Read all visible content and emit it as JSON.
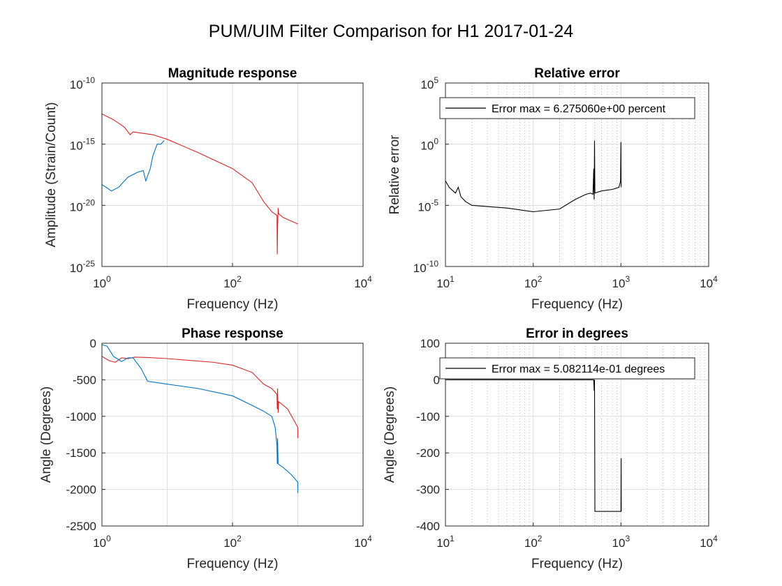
{
  "figure": {
    "title": "PUM/UIM Filter Comparison for H1 2017-01-24"
  },
  "colors": {
    "red": "#d62728",
    "blue": "#0072bd",
    "black": "#000000",
    "grid": "#dddddd"
  },
  "chart_data": [
    {
      "id": "magnitude",
      "type": "line",
      "title": "Magnitude response",
      "xlabel": "Frequency (Hz)",
      "ylabel": "Amplitude (Strain/Count)",
      "xscale": "log",
      "yscale": "log",
      "xlim": [
        1,
        10000
      ],
      "ylim": [
        1e-25,
        1e-10
      ],
      "xticks": [
        {
          "base": "10",
          "exp": "0"
        },
        {
          "base": "10",
          "exp": "2"
        },
        {
          "base": "10",
          "exp": "4"
        }
      ],
      "yticks": [
        {
          "base": "10",
          "exp": "-25"
        },
        {
          "base": "10",
          "exp": "-20"
        },
        {
          "base": "10",
          "exp": "-15"
        },
        {
          "base": "10",
          "exp": "-10"
        }
      ],
      "grid": "major",
      "series": [
        {
          "color": "#d62728",
          "points": [
            [
              1,
              3e-13
            ],
            [
              1.5,
              1e-13
            ],
            [
              2.2,
              2.5e-14
            ],
            [
              2.7,
              6e-15
            ],
            [
              3,
              1e-14
            ],
            [
              4,
              8e-15
            ],
            [
              6,
              6e-15
            ],
            [
              10,
              2.5e-15
            ],
            [
              30,
              2e-16
            ],
            [
              100,
              1e-17
            ],
            [
              200,
              7e-19
            ],
            [
              300,
              2e-20
            ],
            [
              400,
              3e-21
            ],
            [
              480,
              1.5e-21
            ],
            [
              485,
              1e-24
            ],
            [
              490,
              1e-22
            ],
            [
              500,
              6e-21
            ],
            [
              510,
              2e-21
            ],
            [
              600,
              1e-21
            ],
            [
              1000,
              3e-22
            ]
          ]
        },
        {
          "color": "#0072bd",
          "points": [
            [
              1,
              5e-19
            ],
            [
              1.4,
              1.5e-19
            ],
            [
              1.8,
              3e-19
            ],
            [
              2.5,
              2e-18
            ],
            [
              3.5,
              5e-18
            ],
            [
              4.3,
              7e-18
            ],
            [
              4.7,
              1e-18
            ],
            [
              5.5,
              1e-17
            ],
            [
              6,
              1e-16
            ],
            [
              7,
              1e-15
            ],
            [
              8,
              1e-15
            ],
            [
              9,
              2e-15
            ]
          ]
        }
      ]
    },
    {
      "id": "relerr",
      "type": "line",
      "title": "Relative error",
      "xlabel": "Frequency (Hz)",
      "ylabel": "Relative error",
      "xscale": "log",
      "yscale": "log",
      "xlim": [
        10,
        10000
      ],
      "ylim": [
        1e-10,
        100000.0
      ],
      "xticks": [
        {
          "base": "10",
          "exp": "1"
        },
        {
          "base": "10",
          "exp": "2"
        },
        {
          "base": "10",
          "exp": "3"
        },
        {
          "base": "10",
          "exp": "4"
        }
      ],
      "yticks": [
        {
          "base": "10",
          "exp": "-10"
        },
        {
          "base": "10",
          "exp": "-5"
        },
        {
          "base": "10",
          "exp": "0"
        },
        {
          "base": "10",
          "exp": "5"
        }
      ],
      "grid": "major+minor-dotted",
      "legend": {
        "entry": "Error max = 6.275060e+00 percent",
        "location": "top-left"
      },
      "series": [
        {
          "color": "#000000",
          "points": [
            [
              10,
              0.001
            ],
            [
              11,
              0.0003
            ],
            [
              13,
              0.0001
            ],
            [
              14,
              0.0003
            ],
            [
              15,
              5e-05
            ],
            [
              17,
              2e-05
            ],
            [
              20,
              1e-05
            ],
            [
              30,
              8e-06
            ],
            [
              50,
              6e-06
            ],
            [
              100,
              3e-06
            ],
            [
              200,
              5e-06
            ],
            [
              300,
              3e-05
            ],
            [
              400,
              8e-05
            ],
            [
              450,
              0.0001
            ],
            [
              480,
              8e-05
            ],
            [
              490,
              0.01
            ],
            [
              495,
              3e-05
            ],
            [
              500,
              2
            ],
            [
              505,
              0.0001
            ],
            [
              600,
              0.00015
            ],
            [
              800,
              0.0002
            ],
            [
              950,
              0.0003
            ],
            [
              990,
              0.001
            ],
            [
              1000,
              1.5
            ],
            [
              1005,
              0.0003
            ]
          ]
        }
      ]
    },
    {
      "id": "phase",
      "type": "line",
      "title": "Phase response",
      "xlabel": "Frequency (Hz)",
      "ylabel": "Angle (Degrees)",
      "xscale": "log",
      "yscale": "linear",
      "xlim": [
        1,
        10000
      ],
      "ylim": [
        -2500,
        0
      ],
      "xticks": [
        {
          "base": "10",
          "exp": "0"
        },
        {
          "base": "10",
          "exp": "2"
        },
        {
          "base": "10",
          "exp": "4"
        }
      ],
      "yticks": [
        {
          "label": "-2500",
          "value": -2500
        },
        {
          "label": "-2000",
          "value": -2000
        },
        {
          "label": "-1500",
          "value": -1500
        },
        {
          "label": "-1000",
          "value": -1000
        },
        {
          "label": "-500",
          "value": -500
        },
        {
          "label": "0",
          "value": 0
        }
      ],
      "grid": "major",
      "series": [
        {
          "color": "#d62728",
          "points": [
            [
              1,
              -180
            ],
            [
              1.3,
              -240
            ],
            [
              1.6,
              -260
            ],
            [
              2,
              -200
            ],
            [
              2.5,
              -210
            ],
            [
              3.2,
              -190
            ],
            [
              5,
              -195
            ],
            [
              10,
              -210
            ],
            [
              50,
              -260
            ],
            [
              100,
              -300
            ],
            [
              200,
              -400
            ],
            [
              300,
              -560
            ],
            [
              400,
              -620
            ],
            [
              480,
              -700
            ],
            [
              485,
              -900
            ],
            [
              490,
              -620
            ],
            [
              500,
              -950
            ],
            [
              510,
              -800
            ],
            [
              700,
              -900
            ],
            [
              1000,
              -1150
            ],
            [
              1005,
              -1300
            ]
          ]
        },
        {
          "color": "#0072bd",
          "points": [
            [
              1,
              -20
            ],
            [
              1.2,
              -40
            ],
            [
              1.5,
              -180
            ],
            [
              2,
              -250
            ],
            [
              2.5,
              -200
            ],
            [
              3,
              -200
            ],
            [
              4,
              -350
            ],
            [
              5,
              -520
            ],
            [
              10,
              -560
            ],
            [
              30,
              -620
            ],
            [
              100,
              -720
            ],
            [
              200,
              -850
            ],
            [
              300,
              -930
            ],
            [
              400,
              -1000
            ],
            [
              450,
              -1150
            ],
            [
              480,
              -1400
            ],
            [
              485,
              -1650
            ],
            [
              490,
              -1300
            ],
            [
              500,
              -1650
            ],
            [
              600,
              -1700
            ],
            [
              800,
              -1800
            ],
            [
              1000,
              -1900
            ],
            [
              1005,
              -2050
            ]
          ]
        }
      ]
    },
    {
      "id": "degerr",
      "type": "line",
      "title": "Error in degrees",
      "xlabel": "Frequency (Hz)",
      "ylabel": "Angle (Degrees)",
      "xscale": "log",
      "yscale": "linear",
      "xlim": [
        10,
        10000
      ],
      "ylim": [
        -400,
        100
      ],
      "xticks": [
        {
          "base": "10",
          "exp": "1"
        },
        {
          "base": "10",
          "exp": "2"
        },
        {
          "base": "10",
          "exp": "3"
        },
        {
          "base": "10",
          "exp": "4"
        }
      ],
      "yticks": [
        {
          "label": "-400",
          "value": -400
        },
        {
          "label": "-300",
          "value": -300
        },
        {
          "label": "-200",
          "value": -200
        },
        {
          "label": "-100",
          "value": -100
        },
        {
          "label": "0",
          "value": 0
        },
        {
          "label": "100",
          "value": 100
        }
      ],
      "grid": "major+minor-dotted",
      "legend": {
        "entry": "Error max = 5.082114e-01 degrees",
        "location": "top-left"
      },
      "series": [
        {
          "color": "#000000",
          "points": [
            [
              10,
              0
            ],
            [
              490,
              0
            ],
            [
              495,
              -30
            ],
            [
              500,
              0
            ],
            [
              505,
              -360
            ],
            [
              1000,
              -360
            ],
            [
              1005,
              -215
            ],
            [
              1008,
              -360
            ]
          ]
        }
      ]
    }
  ]
}
